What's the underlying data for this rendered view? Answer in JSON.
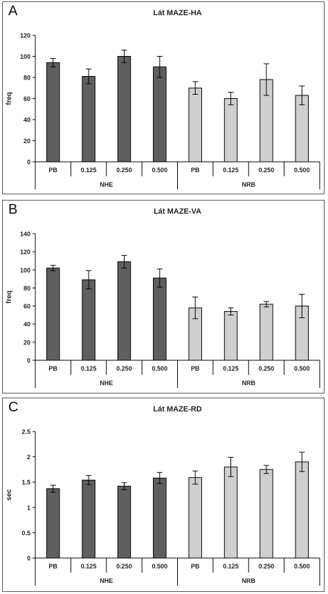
{
  "colors": {
    "nhe": "#5f5f5f",
    "nrb": "#cfcfcf",
    "axis": "#000000",
    "frame": "#555555"
  },
  "chart_data": [
    {
      "type": "bar",
      "panel_label": "A",
      "title": "Lát MAZE-HA",
      "xlabel": "",
      "ylabel": "freq",
      "ylim": [
        0,
        120
      ],
      "yticks": [
        0,
        20,
        40,
        60,
        80,
        100,
        120
      ],
      "ytick_labels": [
        "0",
        "20",
        "40",
        "60",
        "80",
        "100",
        "120"
      ],
      "grid": false,
      "legend": "none",
      "categories": [
        "PB",
        "0.125",
        "0.250",
        "0.500",
        "PB",
        "0.125",
        "0.250",
        "0.500"
      ],
      "groups": [
        {
          "name": "NHE",
          "indices": [
            0,
            1,
            2,
            3
          ],
          "color": "#5f5f5f"
        },
        {
          "name": "NRB",
          "indices": [
            4,
            5,
            6,
            7
          ],
          "color": "#cfcfcf"
        }
      ],
      "values": [
        94,
        81,
        100,
        90,
        70,
        60,
        78,
        63
      ],
      "errors": [
        4,
        7,
        6,
        10,
        6,
        6,
        15,
        9
      ]
    },
    {
      "type": "bar",
      "panel_label": "B",
      "title": "Lát MAZE-VA",
      "xlabel": "",
      "ylabel": "freq",
      "ylim": [
        0,
        140
      ],
      "yticks": [
        0,
        20,
        40,
        60,
        80,
        100,
        120,
        140
      ],
      "ytick_labels": [
        "0",
        "20",
        "40",
        "60",
        "80",
        "100",
        "120",
        "140"
      ],
      "grid": false,
      "legend": "none",
      "categories": [
        "PB",
        "0.125",
        "0.250",
        "0.500",
        "PB",
        "0.125",
        "0.250",
        "0.500"
      ],
      "groups": [
        {
          "name": "NHE",
          "indices": [
            0,
            1,
            2,
            3
          ],
          "color": "#5f5f5f"
        },
        {
          "name": "NRB",
          "indices": [
            4,
            5,
            6,
            7
          ],
          "color": "#cfcfcf"
        }
      ],
      "values": [
        102,
        89,
        109,
        91,
        58,
        54,
        62,
        60
      ],
      "errors": [
        3,
        10,
        7,
        10,
        12,
        4,
        3,
        13
      ]
    },
    {
      "type": "bar",
      "panel_label": "C",
      "title": "Lát MAZE-RD",
      "xlabel": "",
      "ylabel": "sec",
      "ylim": [
        0,
        2.5
      ],
      "yticks": [
        0,
        0.5,
        1,
        1.5,
        2,
        2.5
      ],
      "ytick_labels": [
        "0",
        "0.5",
        "1",
        "1.5",
        "2",
        "2.5"
      ],
      "grid": false,
      "legend": "none",
      "categories": [
        "PB",
        "0.125",
        "0.250",
        "0.500",
        "PB",
        "0.125",
        "0.250",
        "0.500"
      ],
      "groups": [
        {
          "name": "NHE",
          "indices": [
            0,
            1,
            2,
            3
          ],
          "color": "#5f5f5f"
        },
        {
          "name": "NRB",
          "indices": [
            4,
            5,
            6,
            7
          ],
          "color": "#cfcfcf"
        }
      ],
      "values": [
        1.37,
        1.54,
        1.42,
        1.58,
        1.59,
        1.8,
        1.75,
        1.9
      ],
      "errors": [
        0.07,
        0.09,
        0.07,
        0.11,
        0.13,
        0.19,
        0.08,
        0.19
      ]
    }
  ]
}
